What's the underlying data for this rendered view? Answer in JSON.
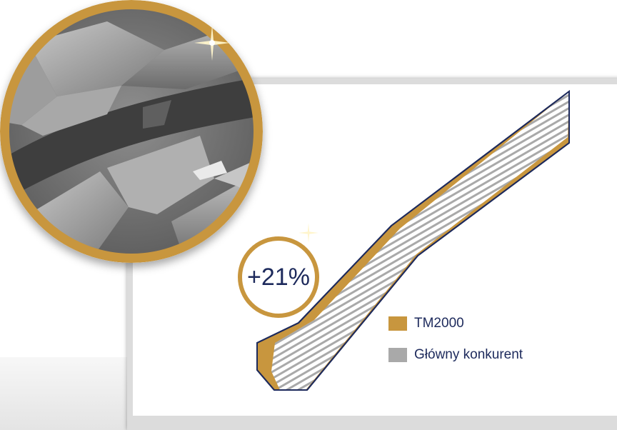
{
  "badge": {
    "text": "+21%"
  },
  "legend": {
    "items": [
      {
        "label": "TM2000",
        "color": "#c8963e"
      },
      {
        "label": "Główny konkurent",
        "color": "#a9a9a9"
      }
    ]
  },
  "colors": {
    "gold": "#c8963e",
    "navy": "#1d2a5c",
    "gray": "#a9a9a9"
  },
  "icons": {
    "tread": "tire-tread-closeup-image",
    "sparkle": "sparkle-icon"
  }
}
